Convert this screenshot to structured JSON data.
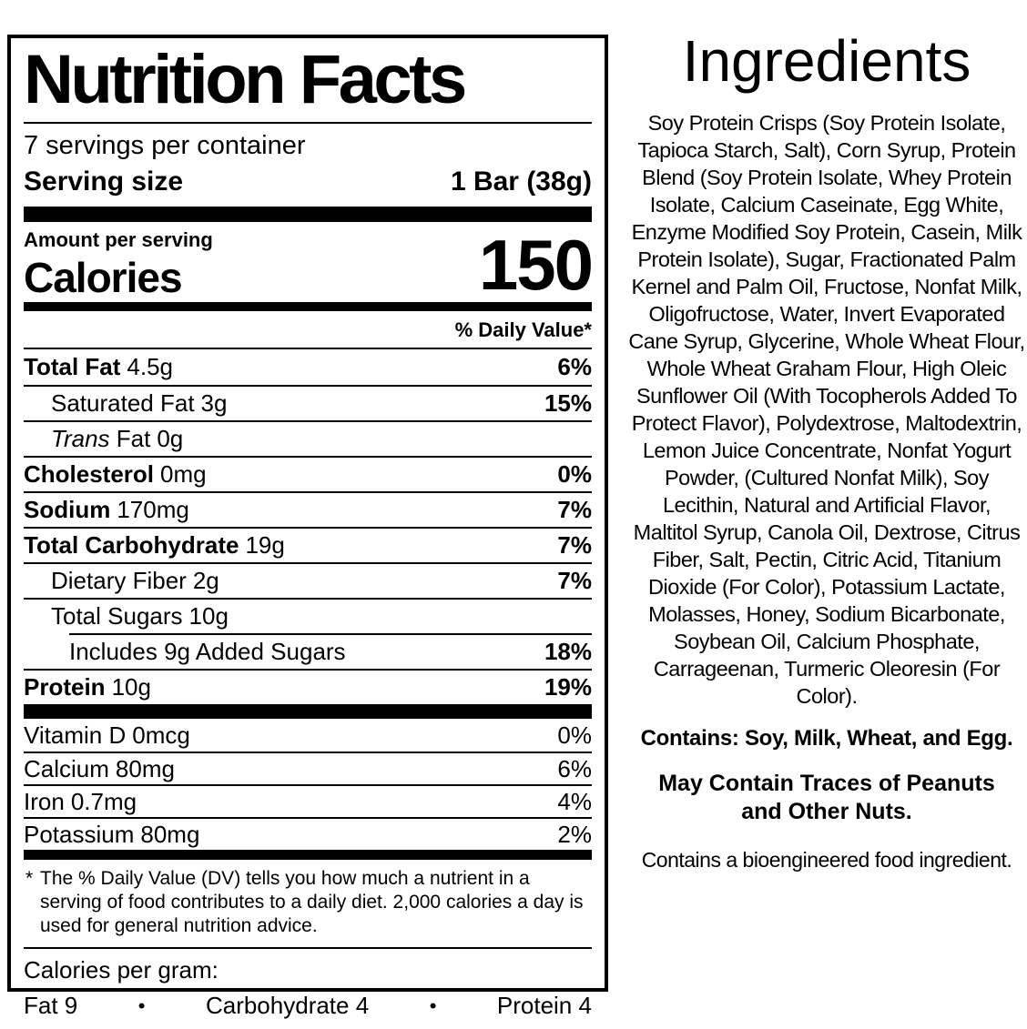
{
  "nutrition_label": {
    "title": "Nutrition Facts",
    "servings_per_container": "7 servings per container",
    "serving_size": {
      "label": "Serving size",
      "value": "1 Bar (38g)"
    },
    "amount_per_serving": "Amount per serving",
    "calories": {
      "label": "Calories",
      "value": "150"
    },
    "daily_value_header": "% Daily Value*",
    "nutrient_rows": [
      {
        "label": "Total Fat",
        "amount": "4.5g",
        "dv": "6%"
      },
      {
        "label": "Saturated Fat",
        "amount": "3g",
        "dv": "15%"
      },
      {
        "label_italic": "Trans",
        "label": " Fat",
        "amount": "0g",
        "dv": ""
      },
      {
        "label": "Cholesterol",
        "amount": "0mg",
        "dv": "0%"
      },
      {
        "label": "Sodium",
        "amount": "170mg",
        "dv": "7%"
      },
      {
        "label": "Total Carbohydrate",
        "amount": "19g",
        "dv": "7%"
      },
      {
        "label": "Dietary Fiber",
        "amount": "2g",
        "dv": "7%"
      },
      {
        "label": "Total Sugars",
        "amount": "10g",
        "dv": ""
      },
      {
        "label": "Includes 9g Added Sugars",
        "amount": "",
        "dv": "18%"
      },
      {
        "label": "Protein",
        "amount": "10g",
        "dv": "19%"
      }
    ],
    "vitamin_rows": [
      {
        "label": "Vitamin D",
        "amount": "0mcg",
        "dv": "0%"
      },
      {
        "label": "Calcium",
        "amount": "80mg",
        "dv": "6%"
      },
      {
        "label": "Iron",
        "amount": "0.7mg",
        "dv": "4%"
      },
      {
        "label": "Potassium",
        "amount": "80mg",
        "dv": "2%"
      }
    ],
    "footnote": {
      "marker": "*",
      "text": "The % Daily Value (DV) tells you how much a nutrient in a serving of food contributes to a daily diet. 2,000 calories a day is used for general nutrition advice."
    },
    "calories_per_gram": {
      "label": "Calories per gram:",
      "fat": "Fat 9",
      "carbohydrate": "Carbohydrate 4",
      "protein": "Protein 4",
      "bullet": "•"
    }
  },
  "ingredients_panel": {
    "title": "Ingredients",
    "body": "Soy Protein Crisps (Soy Protein Isolate, Tapioca Starch, Salt), Corn Syrup, Protein Blend (Soy Protein Isolate, Whey Protein Isolate, Calcium Caseinate, Egg White, Enzyme Modified Soy Protein, Casein, Milk Protein Isolate), Sugar, Fractionated Palm Kernel and Palm Oil, Fructose, Nonfat Milk, Oligofructose, Water, Invert Evaporated Cane Syrup, Glycerine, Whole Wheat Flour, Whole Wheat Graham Flour, High Oleic Sunflower Oil (With Tocopherols Added To Protect Flavor), Polydextrose, Maltodextrin, Lemon Juice Concentrate, Nonfat Yogurt Powder, (Cultured Nonfat Milk), Soy Lecithin, Natural and Artificial Flavor, Maltitol Syrup, Canola Oil, Dextrose, Citrus Fiber, Salt, Pectin, Citric Acid, Titanium Dioxide (For Color), Potassium Lactate, Molasses, Honey, Sodium Bicarbonate, Soybean Oil, Calcium Phosphate, Carrageenan, Turmeric Oleoresin (For Color).",
    "contains": "Contains: Soy, Milk, Wheat, and Egg.",
    "may_contain": "May Contain Traces of Peanuts and Other Nuts.",
    "bioengineered_note": "Contains a bioengineered food ingredient."
  },
  "colors": {
    "text": "#000000",
    "background": "#ffffff"
  }
}
